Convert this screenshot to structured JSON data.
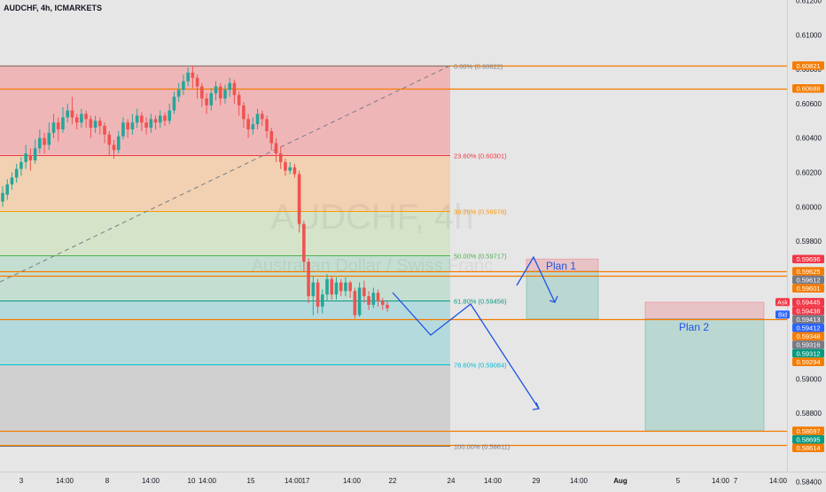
{
  "header": {
    "symbol": "AUDCHF, 4h, ICMARKETS"
  },
  "watermark": {
    "symbol": "AUDCHF, 4h",
    "name": "Australian Dollar / Swiss Franc"
  },
  "colors": {
    "bull": "#26a69a",
    "bear": "#ef5350",
    "plan": "#1e53e5",
    "bg": "#e6e6e6"
  },
  "chart_data": {
    "type": "candlestick",
    "ylim": [
      0.5835,
      0.6122
    ],
    "y_ticks": [
      "0.61200",
      "0.61000",
      "0.60800",
      "0.60600",
      "0.60400",
      "0.60200",
      "0.60000",
      "0.59800",
      "0.59600",
      "0.59400",
      "0.59200",
      "0.59000",
      "0.58800",
      "0.58600",
      "0.58400"
    ],
    "x_ticks": [
      "3",
      "14:00",
      "8",
      "14:00",
      "10",
      "14:00",
      "15",
      "14:00",
      "17",
      "14:00",
      "22",
      "24",
      "14:00",
      "29",
      "14:00",
      "Aug",
      "5",
      "14:00",
      "7",
      "14:00"
    ],
    "fib_levels": [
      {
        "label": "0.00% (0.60822)",
        "price": 0.60822,
        "color": "#787b86"
      },
      {
        "label": "23.60% (0.60301)",
        "price": 0.60301,
        "color": "#f23645"
      },
      {
        "label": "38.20% (0.59978)",
        "price": 0.59978,
        "color": "#ff9800"
      },
      {
        "label": "50.00% (0.59717)",
        "price": 0.59717,
        "color": "#4caf50"
      },
      {
        "label": "61.80% (0.59456)",
        "price": 0.59456,
        "color": "#089981"
      },
      {
        "label": "78.60% (0.59084)",
        "price": 0.59084,
        "color": "#00bcd4"
      },
      {
        "label": "100.00% (0.58611)",
        "price": 0.58611,
        "color": "#787b86"
      }
    ],
    "horizontal_lines": [
      {
        "price": 0.60821,
        "color": "#f57c00"
      },
      {
        "price": 0.60688,
        "color": "#f57c00"
      },
      {
        "price": 0.59625,
        "color": "#f57c00"
      },
      {
        "price": 0.59601,
        "color": "#f57c00"
      },
      {
        "price": 0.59348,
        "color": "#f57c00"
      },
      {
        "price": 0.58697,
        "color": "#f57c00"
      },
      {
        "price": 0.58614,
        "color": "#f57c00"
      }
    ],
    "price_labels": [
      {
        "text": "0.60821",
        "price": 0.60821,
        "color": "#f57c00"
      },
      {
        "text": "0.60688",
        "price": 0.60688,
        "color": "#f57c00"
      },
      {
        "text": "0.59696",
        "price": 0.59696,
        "color": "#f23645"
      },
      {
        "text": "0.59625",
        "price": 0.59625,
        "color": "#f57c00"
      },
      {
        "text": "0.59612",
        "price": 0.59612,
        "color": "#787b86"
      },
      {
        "text": "0.59601",
        "price": 0.59601,
        "color": "#f57c00"
      },
      {
        "text": "0.59445",
        "price": 0.59445,
        "color": "#f23645"
      },
      {
        "text": "0.59438",
        "price": 0.59438,
        "color": "#f23645"
      },
      {
        "text": "0.59413",
        "price": 0.59413,
        "color": "#787b86"
      },
      {
        "text": "0.59412",
        "price": 0.59412,
        "color": "#2962ff"
      },
      {
        "text": "0.59348",
        "price": 0.59348,
        "color": "#f57c00"
      },
      {
        "text": "0.59316",
        "price": 0.59316,
        "color": "#787b86"
      },
      {
        "text": "0.59312",
        "price": 0.59312,
        "color": "#089981"
      },
      {
        "text": "0.59294",
        "price": 0.59294,
        "color": "#f57c00"
      },
      {
        "text": "0.58697",
        "price": 0.58697,
        "color": "#f57c00"
      },
      {
        "text": "0.58695",
        "price": 0.58695,
        "color": "#089981"
      },
      {
        "text": "0.58614",
        "price": 0.58614,
        "color": "#f57c00"
      }
    ],
    "ask_tag": {
      "text": "Ask",
      "price": 0.59438
    },
    "bid_tag": {
      "text": "Bid",
      "price": 0.59412
    },
    "plans": [
      {
        "label": "Plan 1",
        "stop": [
          0.59696,
          0.59625
        ],
        "target": [
          0.59625,
          0.59348
        ]
      },
      {
        "label": "Plan 2",
        "stop": [
          0.59445,
          0.59348
        ],
        "target": [
          0.59348,
          0.58697
        ]
      }
    ],
    "candles": [
      [
        0.6003,
        0.6008,
        0.6,
        0.6012
      ],
      [
        0.6007,
        0.6013,
        0.6004,
        0.6016
      ],
      [
        0.6013,
        0.6017,
        0.601,
        0.602
      ],
      [
        0.6017,
        0.6022,
        0.6014,
        0.6025
      ],
      [
        0.6022,
        0.6026,
        0.6018,
        0.6029
      ],
      [
        0.6026,
        0.6031,
        0.6022,
        0.6036
      ],
      [
        0.603,
        0.6027,
        0.6021,
        0.6034
      ],
      [
        0.6027,
        0.6034,
        0.6025,
        0.6039
      ],
      [
        0.6034,
        0.604,
        0.6031,
        0.6045
      ],
      [
        0.604,
        0.6036,
        0.6031,
        0.6043
      ],
      [
        0.6036,
        0.6043,
        0.6033,
        0.6049
      ],
      [
        0.6043,
        0.6049,
        0.604,
        0.6054
      ],
      [
        0.6049,
        0.6045,
        0.6038,
        0.6052
      ],
      [
        0.6045,
        0.6052,
        0.6043,
        0.6058
      ],
      [
        0.6052,
        0.6056,
        0.6049,
        0.606
      ],
      [
        0.6056,
        0.6052,
        0.6048,
        0.6064
      ],
      [
        0.6052,
        0.6049,
        0.6045,
        0.6054
      ],
      [
        0.6049,
        0.6054,
        0.6046,
        0.6057
      ],
      [
        0.6054,
        0.6051,
        0.6046,
        0.6056
      ],
      [
        0.6051,
        0.6046,
        0.604,
        0.6053
      ],
      [
        0.6046,
        0.605,
        0.6043,
        0.6053
      ],
      [
        0.605,
        0.6047,
        0.6042,
        0.6052
      ],
      [
        0.6047,
        0.6042,
        0.6037,
        0.6049
      ],
      [
        0.6042,
        0.6036,
        0.603,
        0.6044
      ],
      [
        0.6036,
        0.6033,
        0.6028,
        0.6039
      ],
      [
        0.6033,
        0.6041,
        0.6031,
        0.6044
      ],
      [
        0.6041,
        0.6049,
        0.6039,
        0.6052
      ],
      [
        0.6049,
        0.6045,
        0.604,
        0.6051
      ],
      [
        0.6045,
        0.6049,
        0.6042,
        0.6054
      ],
      [
        0.6049,
        0.6053,
        0.6046,
        0.6057
      ],
      [
        0.6053,
        0.6049,
        0.6044,
        0.6055
      ],
      [
        0.6049,
        0.6046,
        0.6042,
        0.6052
      ],
      [
        0.6046,
        0.6051,
        0.6043,
        0.6054
      ],
      [
        0.6051,
        0.6049,
        0.6045,
        0.6053
      ],
      [
        0.6049,
        0.6053,
        0.6046,
        0.6056
      ],
      [
        0.6053,
        0.605,
        0.6047,
        0.6055
      ],
      [
        0.605,
        0.6056,
        0.6048,
        0.606
      ],
      [
        0.6056,
        0.6064,
        0.6054,
        0.6067
      ],
      [
        0.6064,
        0.6068,
        0.6061,
        0.6072
      ],
      [
        0.6068,
        0.6073,
        0.6065,
        0.6077
      ],
      [
        0.6073,
        0.6078,
        0.607,
        0.6081
      ],
      [
        0.6078,
        0.6075,
        0.6069,
        0.6082
      ],
      [
        0.6075,
        0.607,
        0.6063,
        0.6077
      ],
      [
        0.607,
        0.6063,
        0.6058,
        0.6072
      ],
      [
        0.6063,
        0.6059,
        0.6054,
        0.6066
      ],
      [
        0.6059,
        0.6066,
        0.6056,
        0.6069
      ],
      [
        0.6066,
        0.607,
        0.6062,
        0.6073
      ],
      [
        0.607,
        0.6063,
        0.6059,
        0.6072
      ],
      [
        0.6063,
        0.6068,
        0.606,
        0.6071
      ],
      [
        0.6068,
        0.6072,
        0.6064,
        0.6075
      ],
      [
        0.6072,
        0.6065,
        0.606,
        0.6074
      ],
      [
        0.6065,
        0.6059,
        0.6053,
        0.6067
      ],
      [
        0.6059,
        0.6051,
        0.6046,
        0.6061
      ],
      [
        0.6051,
        0.6045,
        0.604,
        0.6054
      ],
      [
        0.6045,
        0.6048,
        0.6042,
        0.6052
      ],
      [
        0.6048,
        0.6054,
        0.6045,
        0.6057
      ],
      [
        0.6054,
        0.6051,
        0.6047,
        0.6056
      ],
      [
        0.6051,
        0.6044,
        0.604,
        0.6053
      ],
      [
        0.6044,
        0.6037,
        0.6033,
        0.6046
      ],
      [
        0.6037,
        0.6031,
        0.6026,
        0.604
      ],
      [
        0.6031,
        0.6026,
        0.6022,
        0.6035
      ],
      [
        0.6026,
        0.6021,
        0.6018,
        0.6028
      ],
      [
        0.6021,
        0.6023,
        0.6019,
        0.6026
      ],
      [
        0.6023,
        0.6019,
        0.6017,
        0.6025
      ],
      [
        0.6019,
        0.599,
        0.5985,
        0.6021
      ],
      [
        0.599,
        0.5968,
        0.5962,
        0.5992
      ],
      [
        0.5968,
        0.5948,
        0.5944,
        0.597
      ],
      [
        0.5948,
        0.5956,
        0.5937,
        0.596
      ],
      [
        0.5956,
        0.5942,
        0.5938,
        0.5958
      ],
      [
        0.5942,
        0.5949,
        0.5938,
        0.5952
      ],
      [
        0.5949,
        0.5958,
        0.5945,
        0.5961
      ],
      [
        0.5958,
        0.5949,
        0.5946,
        0.596
      ],
      [
        0.5949,
        0.5956,
        0.5946,
        0.5959
      ],
      [
        0.5956,
        0.5951,
        0.5948,
        0.5958
      ],
      [
        0.5951,
        0.5956,
        0.5948,
        0.5959
      ],
      [
        0.5956,
        0.5951,
        0.5947,
        0.5957
      ],
      [
        0.5951,
        0.5937,
        0.5935,
        0.5953
      ],
      [
        0.5937,
        0.5953,
        0.5936,
        0.5956
      ],
      [
        0.5953,
        0.5948,
        0.5944,
        0.5957
      ],
      [
        0.5948,
        0.5943,
        0.594,
        0.5951
      ],
      [
        0.5943,
        0.595,
        0.5941,
        0.5953
      ],
      [
        0.595,
        0.5945,
        0.5942,
        0.5952
      ],
      [
        0.5945,
        0.5943,
        0.594,
        0.5947
      ],
      [
        0.5943,
        0.5941,
        0.5939,
        0.5945
      ]
    ]
  }
}
